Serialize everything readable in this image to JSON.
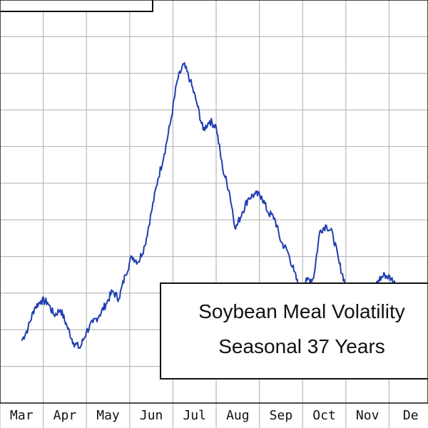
{
  "chart_data": {
    "type": "line",
    "title_lines": [
      "Soybean Meal Volatility",
      "Seasonal 37 Years"
    ],
    "x_ticks": [
      "Mar",
      "Apr",
      "May",
      "Jun",
      "Jul",
      "Aug",
      "Sep",
      "Oct",
      "Nov",
      "De"
    ],
    "grid": true,
    "line_color": "#1f3fb0",
    "series": [
      {
        "x": [
          0.0,
          0.15,
          0.3,
          0.45,
          0.6,
          0.75,
          0.9,
          1.05,
          1.2,
          1.35,
          1.5,
          1.65,
          1.8,
          1.95,
          2.1,
          2.25,
          2.4,
          2.55,
          2.7,
          2.85,
          3.0,
          3.15,
          3.3,
          3.45,
          3.6,
          3.75,
          3.9,
          4.05,
          4.2,
          4.35,
          4.5,
          4.65,
          4.8,
          4.95,
          5.1,
          5.25,
          5.4,
          5.55,
          5.7,
          5.85,
          6.0,
          6.15,
          6.3,
          6.45,
          6.6,
          6.75,
          6.9,
          7.05,
          7.2,
          7.35,
          7.5,
          7.65,
          7.8,
          7.95,
          8.1,
          8.25,
          8.4,
          8.55,
          8.7,
          8.85,
          9.0,
          9.15,
          9.3,
          9.45
        ],
        "values": [
          17.0,
          20.5,
          26.0,
          28.0,
          27.5,
          24.0,
          25.5,
          21.0,
          16.5,
          15.0,
          19.5,
          22.0,
          24.0,
          27.0,
          30.5,
          28.5,
          35.0,
          40.0,
          38.5,
          43.0,
          52.0,
          61.0,
          68.0,
          77.0,
          88.0,
          92.5,
          88.0,
          82.0,
          74.5,
          77.0,
          75.5,
          64.0,
          58.0,
          47.5,
          52.0,
          56.0,
          57.0,
          56.5,
          52.0,
          50.5,
          44.0,
          41.5,
          36.0,
          30.0,
          33.5,
          34.0,
          47.0,
          48.5,
          46.0,
          38.0,
          32.0,
          28.5,
          18.5,
          24.0,
          30.0,
          33.5,
          35.0,
          34.0,
          31.5,
          30.0,
          29.0,
          27.0,
          28.5,
          31.0
        ]
      }
    ],
    "xlim": [
      -0.5,
      9.4
    ],
    "ylim": [
      0,
      110
    ]
  }
}
